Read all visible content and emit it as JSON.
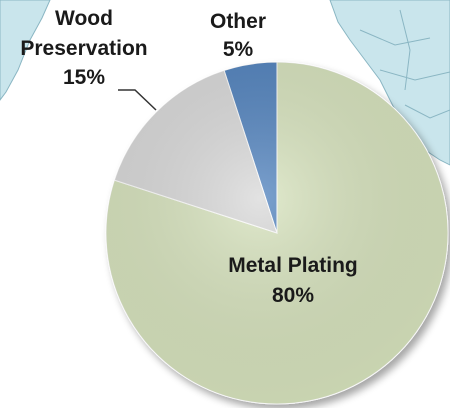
{
  "chart_data": {
    "type": "pie",
    "title": "",
    "slices": [
      {
        "label": "Metal Plating",
        "value": 80,
        "value_label": "80%",
        "color": "#d7e3bd"
      },
      {
        "label": "Wood Preservation",
        "value": 15,
        "value_label": "15%",
        "color": "#d9d9d9"
      },
      {
        "label": "Other",
        "value": 5,
        "value_label": "5%",
        "color": "#4f81bd"
      }
    ],
    "legend": "none",
    "labels": "on-slice and outside with leader line"
  },
  "background": {
    "map_fill": "#c9e5ec",
    "map_border": "#8ab6c3"
  },
  "labels": {
    "wood_line1": "Wood",
    "wood_line2": "Preservation",
    "other_line1": "Other"
  }
}
